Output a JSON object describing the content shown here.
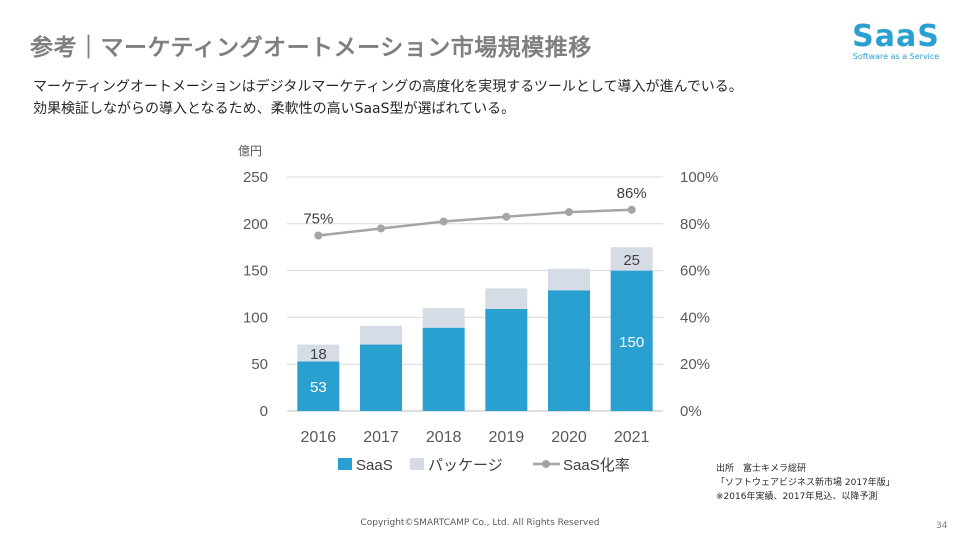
{
  "title": "参考｜マーケティングオートメーション市場規模推移",
  "description": [
    "マーケティングオートメーションはデジタルマーケティングの高度化を実現するツールとして導入が進んでいる。",
    "効果検証しながらの導入となるため、柔軟性の高いSaaS型が選ばれている。"
  ],
  "logo": {
    "main": "SaaS",
    "tagline": "Software as a Service"
  },
  "source": [
    "出所　富士キメラ総研",
    "「ソフトウェアビジネス新市場 2017年版」",
    "※2016年実績、2017年見込、以降予測"
  ],
  "footer": "Copyright©SMARTCAMP Co., Ltd. All Rights Reserved",
  "page_number": "34",
  "colors": {
    "saas": "#2aa0d0",
    "package": "#d6dce5",
    "rate": "#a5a5a5"
  },
  "chart_data": {
    "type": "bar",
    "stacked": true,
    "categories": [
      "2016",
      "2017",
      "2018",
      "2019",
      "2020",
      "2021"
    ],
    "y_unit_label": "億円",
    "ylim": [
      0,
      250
    ],
    "yticks": [
      "0",
      "50",
      "100",
      "150",
      "200",
      "250"
    ],
    "y2lim": [
      0,
      100
    ],
    "y2ticks": [
      "0%",
      "20%",
      "40%",
      "60%",
      "80%",
      "100%"
    ],
    "series": [
      {
        "name": "SaaS",
        "type": "bar",
        "values": [
          53,
          71,
          89,
          109,
          129,
          150
        ],
        "labels": [
          "53",
          "",
          "",
          "",
          "",
          "150"
        ]
      },
      {
        "name": "パッケージ",
        "type": "bar",
        "values": [
          18,
          20,
          21,
          22,
          23,
          25
        ],
        "labels": [
          "18",
          "",
          "",
          "",
          "",
          "25"
        ]
      },
      {
        "name": "SaaS化率",
        "type": "line",
        "axis": "right",
        "values": [
          75,
          78,
          81,
          83,
          85,
          86
        ],
        "labels": [
          "75%",
          "",
          "",
          "",
          "",
          "86%"
        ]
      }
    ],
    "legend": "bottom",
    "grid": true
  }
}
